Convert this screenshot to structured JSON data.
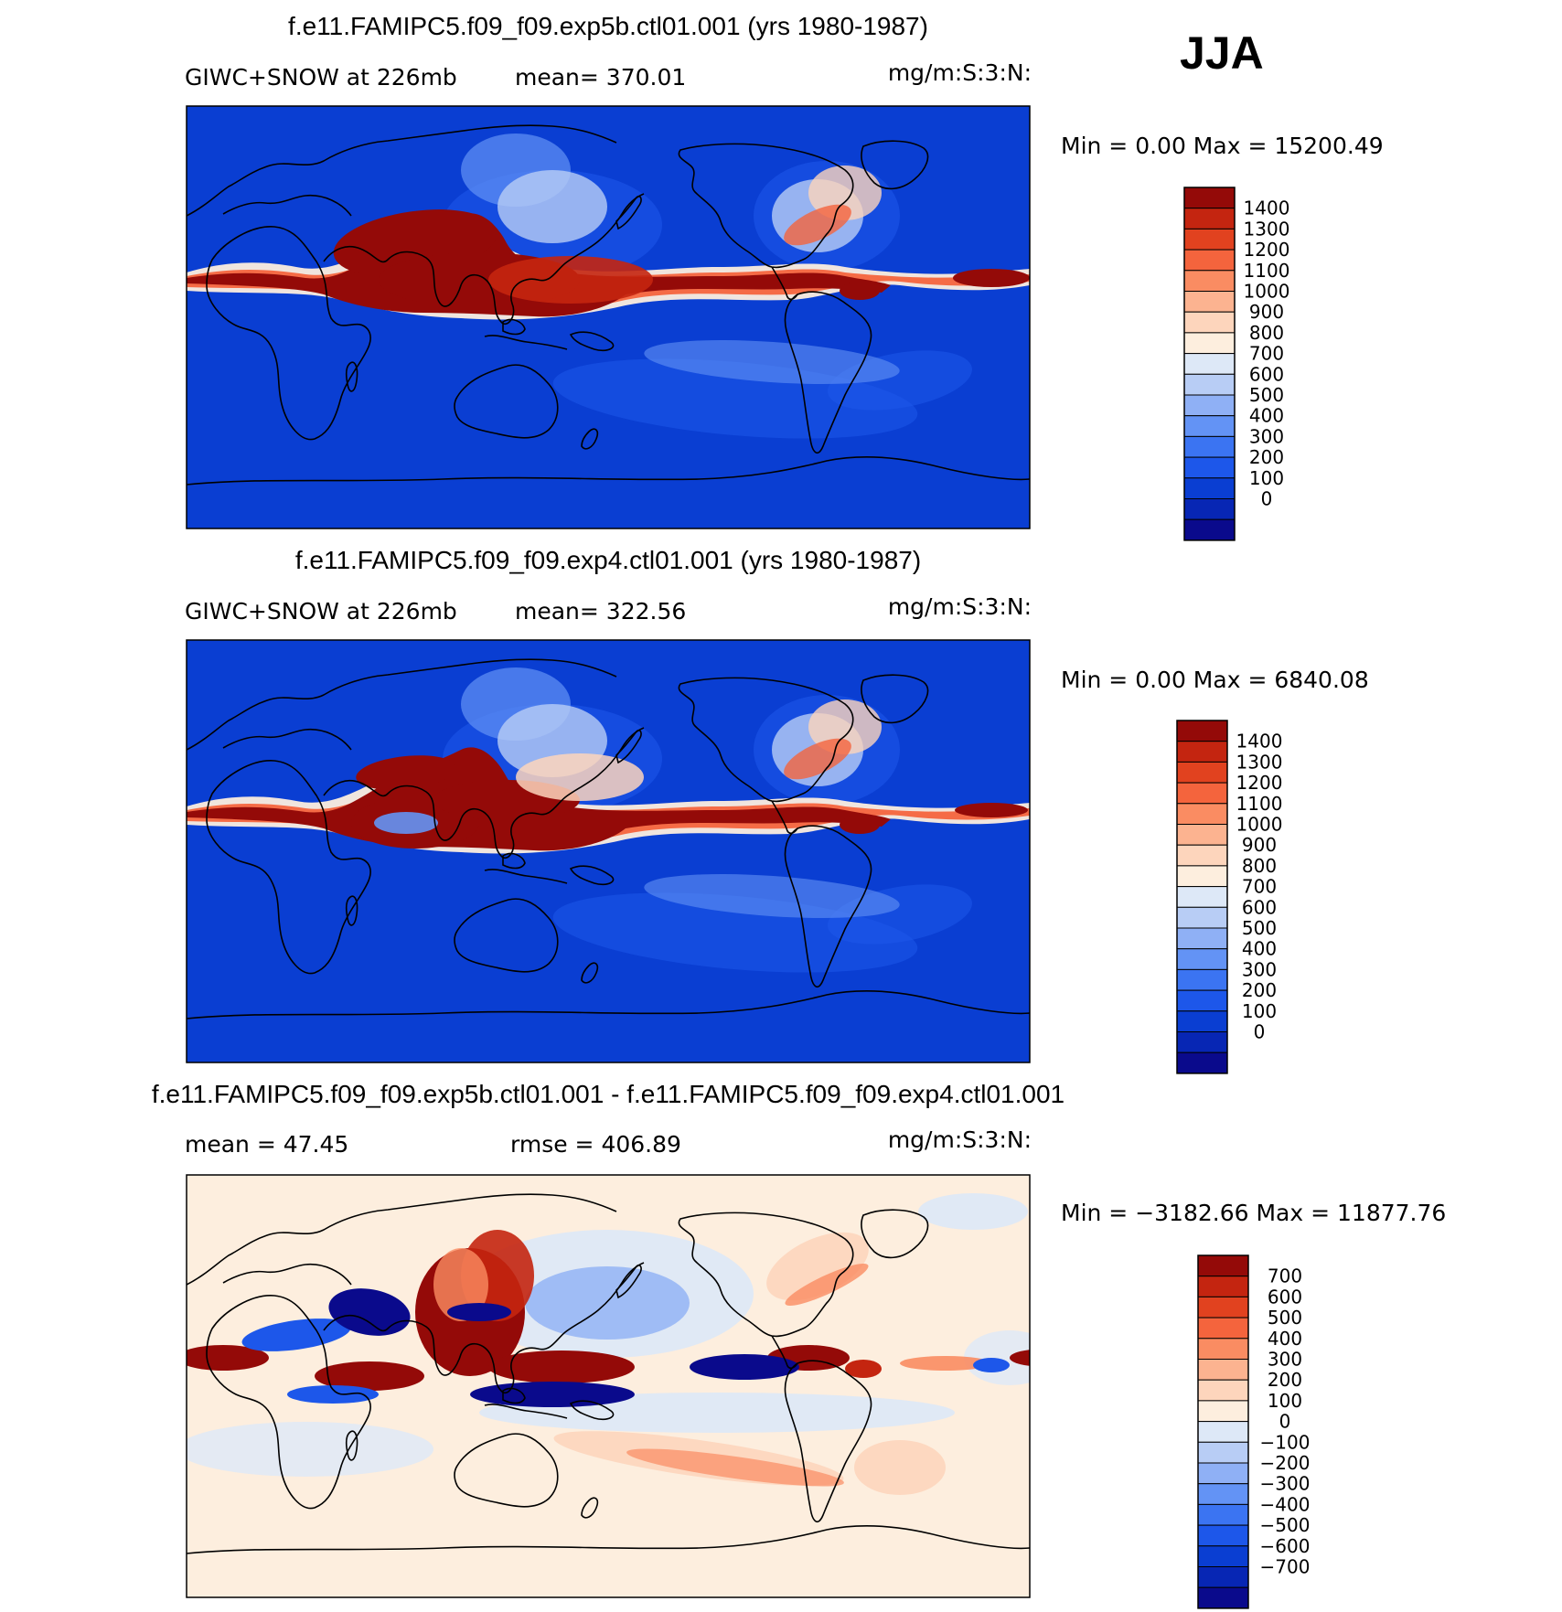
{
  "season": "JJA",
  "panels": [
    {
      "title": "f.e11.FAMIPC5.f09_f09.exp5b.ctl01.001 (yrs 1980-1987)",
      "variable": "GIWC+SNOW at 226mb",
      "stat": "mean= 370.01",
      "units": "mg/m:S:3:N:",
      "minmax": "Min =    0.00 Max = 15200.49",
      "field": "exp5b",
      "colors": [
        "#0a0a8c",
        "#0726b4",
        "#0a3ed2",
        "#1d57ea",
        "#3b74f2",
        "#6393f5",
        "#8fb0f5",
        "#b8cdf5",
        "#dde8f7",
        "#fdeede",
        "#fdd5bc",
        "#fcb390",
        "#fa8c62",
        "#f4643d",
        "#e1421f",
        "#c42510",
        "#940a08"
      ],
      "ticks": [
        "1400",
        "1300",
        "1200",
        "1100",
        "1000",
        "900",
        "800",
        "700",
        "600",
        "500",
        "400",
        "300",
        "200",
        "100",
        "0"
      ]
    },
    {
      "title": "f.e11.FAMIPC5.f09_f09.exp4.ctl01.001 (yrs 1980-1987)",
      "variable": "GIWC+SNOW at 226mb",
      "stat": "mean= 322.56",
      "units": "mg/m:S:3:N:",
      "minmax": "Min =    0.00 Max = 6840.08",
      "field": "exp4",
      "colors": [
        "#0a0a8c",
        "#0726b4",
        "#0a3ed2",
        "#1d57ea",
        "#3b74f2",
        "#6393f5",
        "#8fb0f5",
        "#b8cdf5",
        "#dde8f7",
        "#fdeede",
        "#fdd5bc",
        "#fcb390",
        "#fa8c62",
        "#f4643d",
        "#e1421f",
        "#c42510",
        "#940a08"
      ],
      "ticks": [
        "1400",
        "1300",
        "1200",
        "1100",
        "1000",
        "900",
        "800",
        "700",
        "600",
        "500",
        "400",
        "300",
        "200",
        "100",
        "0"
      ]
    },
    {
      "title": "f.e11.FAMIPC5.f09_f09.exp5b.ctl01.001 - f.e11.FAMIPC5.f09_f09.exp4.ctl01.001",
      "variable": "mean =   47.45",
      "stat": "rmse = 406.89",
      "units": "mg/m:S:3:N:",
      "minmax": "Min = −3182.66 Max = 11877.76",
      "field": "diff",
      "colors": [
        "#0a0a8c",
        "#0726b4",
        "#0a3ed2",
        "#1d57ea",
        "#3b74f2",
        "#6393f5",
        "#8fb0f5",
        "#b8cdf5",
        "#dde8f7",
        "#fdeede",
        "#fdd5bc",
        "#fcb390",
        "#fa8c62",
        "#f4643d",
        "#e1421f",
        "#c42510",
        "#940a08"
      ],
      "ticks": [
        "700",
        "600",
        "500",
        "400",
        "300",
        "200",
        "100",
        "0",
        "−100",
        "−200",
        "−300",
        "−400",
        "−500",
        "−600",
        "−700"
      ]
    }
  ]
}
